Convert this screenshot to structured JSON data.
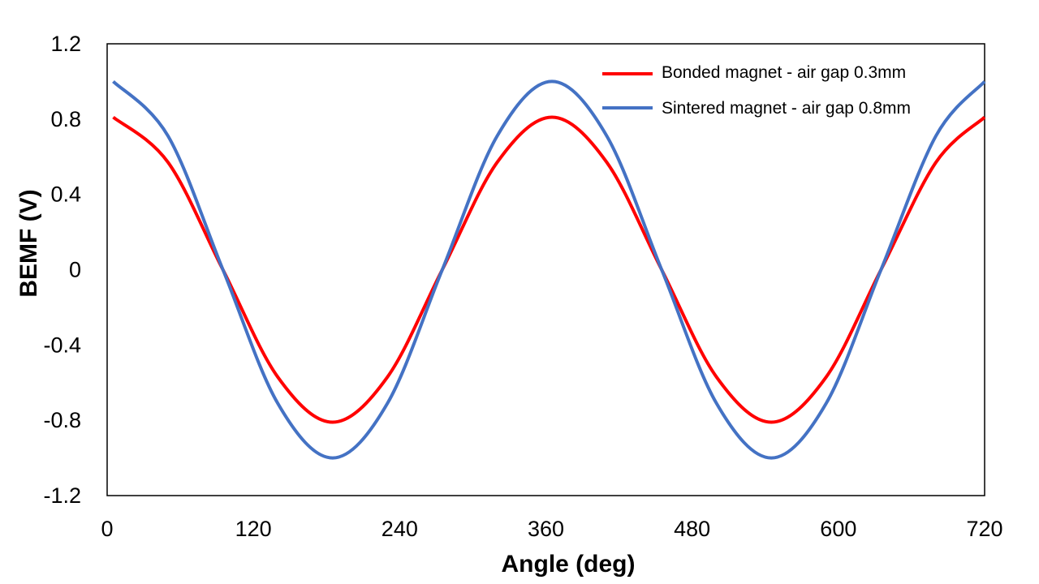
{
  "chart_data": {
    "type": "line",
    "title": "",
    "xlabel": "Angle  (deg)",
    "ylabel": "BEMF  (V)",
    "xlim": [
      0,
      720
    ],
    "ylim": [
      -1.2,
      1.2
    ],
    "xticks": [
      0,
      120,
      240,
      360,
      480,
      600,
      720
    ],
    "yticks": [
      -1.2,
      -0.8,
      -0.4,
      0,
      0.4,
      0.8,
      1.2
    ],
    "xtick_labels": [
      "0",
      "120",
      "240",
      "360",
      "480",
      "600",
      "720"
    ],
    "ytick_labels": [
      "-1.2",
      "-0.8",
      "-0.4",
      "0",
      "0.4",
      "0.8",
      "1.2"
    ],
    "grid": false,
    "legend_position": "top-right",
    "series": [
      {
        "name": "Bonded magnet - air gap 0.3mm",
        "color": "#ff0000",
        "x": [
          5,
          50,
          95,
          140,
          185,
          230,
          275,
          320,
          365,
          410,
          455,
          500,
          545,
          590,
          635,
          680,
          720
        ],
        "y": [
          0.81,
          0.57,
          0,
          -0.57,
          -0.81,
          -0.57,
          0,
          0.57,
          0.81,
          0.57,
          0,
          -0.57,
          -0.81,
          -0.57,
          0,
          0.57,
          0.81
        ]
      },
      {
        "name": "Sintered magnet - air gap 0.8mm",
        "color": "#4472c4",
        "x": [
          5,
          50,
          95,
          140,
          185,
          230,
          275,
          320,
          365,
          410,
          455,
          500,
          545,
          590,
          635,
          680,
          720
        ],
        "y": [
          1.0,
          0.71,
          0,
          -0.71,
          -1.0,
          -0.71,
          0,
          0.71,
          1.0,
          0.71,
          0,
          -0.71,
          -1.0,
          -0.71,
          0,
          0.71,
          1.0
        ]
      }
    ]
  }
}
